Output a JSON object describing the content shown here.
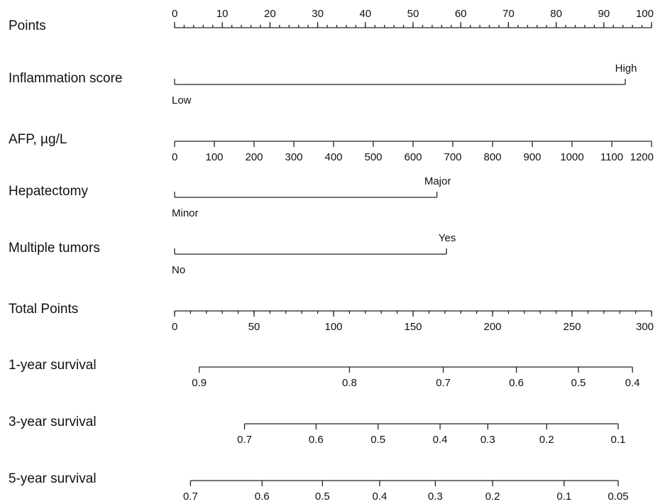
{
  "chart_data": {
    "type": "nomogram",
    "title": "",
    "rows": [
      {
        "key": "points",
        "label": "Points",
        "scale": {
          "type": "linear",
          "min": 0,
          "max": 100
        },
        "ticks": [
          0,
          10,
          20,
          30,
          40,
          50,
          60,
          70,
          80,
          90,
          100
        ],
        "minor_step": 2,
        "label_position": "top"
      },
      {
        "key": "inflammation_score",
        "label": "Inflammation score",
        "type": "categorical",
        "categories": [
          {
            "label": "Low",
            "points": 0
          },
          {
            "label": "High",
            "points": 94.5
          }
        ]
      },
      {
        "key": "afp",
        "label": "AFP, µg/L",
        "scale": {
          "type": "linear",
          "min": 0,
          "max": 1200,
          "points_min": 0,
          "points_max": 100
        },
        "ticks": [
          0,
          100,
          200,
          300,
          400,
          500,
          600,
          700,
          800,
          900,
          1000,
          1100,
          1200
        ],
        "label_position": "bottom"
      },
      {
        "key": "hepatectomy",
        "label": "Hepatectomy",
        "type": "categorical",
        "categories": [
          {
            "label": "Minor",
            "points": 0
          },
          {
            "label": "Major",
            "points": 55
          }
        ]
      },
      {
        "key": "multiple_tumors",
        "label": "Multiple tumors",
        "type": "categorical",
        "categories": [
          {
            "label": "No",
            "points": 0
          },
          {
            "label": "Yes",
            "points": 57
          }
        ]
      },
      {
        "key": "total_points",
        "label": "Total Points",
        "scale": {
          "type": "linear",
          "min": 0,
          "max": 300
        },
        "ticks": [
          0,
          50,
          100,
          150,
          200,
          250,
          300
        ],
        "minor_step": 10,
        "label_position": "bottom"
      },
      {
        "key": "survival_1y",
        "label": "1-year survival",
        "type": "probability",
        "ticks": [
          {
            "label": "0.9",
            "total_points": 15.5
          },
          {
            "label": "0.8",
            "total_points": 110
          },
          {
            "label": "0.7",
            "total_points": 169
          },
          {
            "label": "0.6",
            "total_points": 215
          },
          {
            "label": "0.5",
            "total_points": 254
          },
          {
            "label": "0.4",
            "total_points": 288
          }
        ],
        "line_range": [
          15.5,
          288
        ]
      },
      {
        "key": "survival_3y",
        "label": "3-year survival",
        "type": "probability",
        "ticks": [
          {
            "label": "0.7",
            "total_points": 44
          },
          {
            "label": "0.6",
            "total_points": 89
          },
          {
            "label": "0.5",
            "total_points": 128
          },
          {
            "label": "0.4",
            "total_points": 167
          },
          {
            "label": "0.3",
            "total_points": 197
          },
          {
            "label": "0.2",
            "total_points": 234
          },
          {
            "label": "0.1",
            "total_points": 279
          }
        ],
        "line_range": [
          44,
          279
        ]
      },
      {
        "key": "survival_5y",
        "label": "5-year survival",
        "type": "probability",
        "ticks": [
          {
            "label": "0.7",
            "total_points": 10
          },
          {
            "label": "0.6",
            "total_points": 55
          },
          {
            "label": "0.5",
            "total_points": 93
          },
          {
            "label": "0.4",
            "total_points": 129
          },
          {
            "label": "0.3",
            "total_points": 164
          },
          {
            "label": "0.2",
            "total_points": 200
          },
          {
            "label": "0.1",
            "total_points": 245
          },
          {
            "label": "0.05",
            "total_points": 279
          }
        ],
        "line_range": [
          10,
          279
        ]
      }
    ]
  }
}
